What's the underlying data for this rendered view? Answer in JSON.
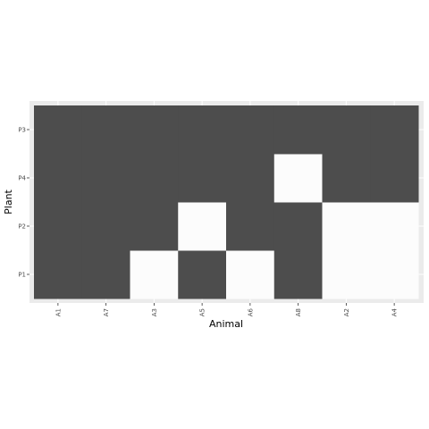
{
  "chart_data": {
    "type": "heatmap",
    "title": "",
    "xlabel": "Animal",
    "ylabel": "Plant",
    "x_categories": [
      "A1",
      "A7",
      "A3",
      "A5",
      "A6",
      "A8",
      "A2",
      "A4"
    ],
    "y_categories": [
      "P1",
      "P2",
      "P4",
      "P3"
    ],
    "matrix": [
      [
        1,
        1,
        0,
        1,
        0,
        1,
        0,
        0
      ],
      [
        1,
        1,
        1,
        0,
        1,
        1,
        0,
        0
      ],
      [
        1,
        1,
        1,
        1,
        1,
        0,
        1,
        1
      ],
      [
        1,
        1,
        1,
        1,
        1,
        1,
        1,
        1
      ]
    ],
    "legend": "none",
    "grid": true
  },
  "colors": {
    "present": "#4d4d4d",
    "absent": "#fcfcfc",
    "panel": "#ebebeb",
    "grid": "#ffffff"
  }
}
